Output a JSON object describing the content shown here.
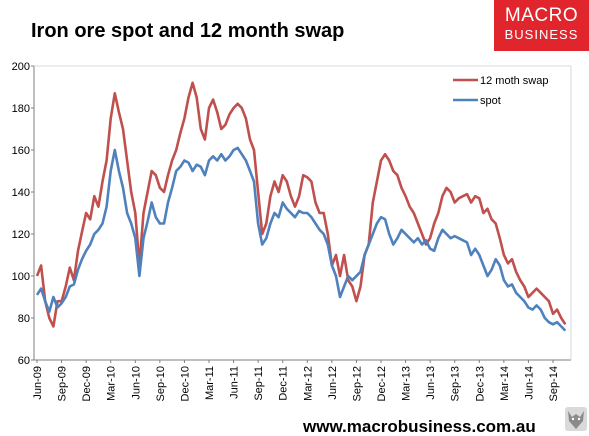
{
  "header": {
    "title": "Iron ore spot and 12 month swap",
    "logo_line1": "MACRO",
    "logo_line2": "BUSINESS"
  },
  "footer": {
    "url": "www.macrobusiness.com.au",
    "logo": "wolf-logo"
  },
  "colors": {
    "swap": "#c0504d",
    "spot": "#4f81bd",
    "logo_bg": "#e0262c"
  },
  "chart_data": {
    "type": "line",
    "title": "Iron ore spot and 12 month swap",
    "xlabel": "",
    "ylabel": "",
    "ylim": [
      60,
      200
    ],
    "yticks": [
      "60",
      "80",
      "100",
      "120",
      "140",
      "160",
      "180",
      "200"
    ],
    "xticks": [
      "Jun-09",
      "Sep-09",
      "Dec-09",
      "Mar-10",
      "Jun-10",
      "Sep-10",
      "Dec-10",
      "Mar-11",
      "Jun-11",
      "Sep-11",
      "Dec-11",
      "Mar-12",
      "Jun-12",
      "Sep-12",
      "Dec-12",
      "Mar-13",
      "Jun-13",
      "Sep-13",
      "Dec-13",
      "Mar-14",
      "Jun-14",
      "Sep-14"
    ],
    "grid": false,
    "legend": "top-right",
    "series": [
      {
        "name": "12 moth swap",
        "color": "#c0504d",
        "points": [
          [
            "Jun-09",
            100
          ],
          [
            "Jun-09",
            105
          ],
          [
            "Jul-09",
            88
          ],
          [
            "Jul-09",
            80
          ],
          [
            "Aug-09",
            76
          ],
          [
            "Aug-09",
            88
          ],
          [
            "Sep-09",
            88
          ],
          [
            "Sep-09",
            95
          ],
          [
            "Oct-09",
            104
          ],
          [
            "Oct-09",
            98
          ],
          [
            "Nov-09",
            112
          ],
          [
            "Nov-09",
            121
          ],
          [
            "Dec-09",
            130
          ],
          [
            "Dec-09",
            127
          ],
          [
            "Jan-10",
            138
          ],
          [
            "Jan-10",
            133
          ],
          [
            "Feb-10",
            145
          ],
          [
            "Feb-10",
            155
          ],
          [
            "Mar-10",
            175
          ],
          [
            "Mar-10",
            187
          ],
          [
            "Apr-10",
            178
          ],
          [
            "Apr-10",
            170
          ],
          [
            "May-10",
            155
          ],
          [
            "May-10",
            140
          ],
          [
            "Jun-10",
            130
          ],
          [
            "Jun-10",
            105
          ],
          [
            "Jul-10",
            130
          ],
          [
            "Jul-10",
            140
          ],
          [
            "Aug-10",
            150
          ],
          [
            "Aug-10",
            148
          ],
          [
            "Sep-10",
            142
          ],
          [
            "Sep-10",
            140
          ],
          [
            "Oct-10",
            148
          ],
          [
            "Oct-10",
            155
          ],
          [
            "Nov-10",
            160
          ],
          [
            "Nov-10",
            168
          ],
          [
            "Dec-10",
            175
          ],
          [
            "Dec-10",
            185
          ],
          [
            "Jan-11",
            192
          ],
          [
            "Jan-11",
            185
          ],
          [
            "Feb-11",
            170
          ],
          [
            "Feb-11",
            165
          ],
          [
            "Mar-11",
            180
          ],
          [
            "Mar-11",
            184
          ],
          [
            "Apr-11",
            178
          ],
          [
            "Apr-11",
            170
          ],
          [
            "May-11",
            172
          ],
          [
            "May-11",
            177
          ],
          [
            "Jun-11",
            180
          ],
          [
            "Jun-11",
            182
          ],
          [
            "Jul-11",
            180
          ],
          [
            "Jul-11",
            175
          ],
          [
            "Aug-11",
            165
          ],
          [
            "Aug-11",
            160
          ],
          [
            "Sep-11",
            140
          ],
          [
            "Sep-11",
            120
          ],
          [
            "Oct-11",
            125
          ],
          [
            "Oct-11",
            138
          ],
          [
            "Nov-11",
            145
          ],
          [
            "Nov-11",
            140
          ],
          [
            "Dec-11",
            148
          ],
          [
            "Dec-11",
            145
          ],
          [
            "Jan-12",
            138
          ],
          [
            "Jan-12",
            133
          ],
          [
            "Feb-12",
            138
          ],
          [
            "Feb-12",
            148
          ],
          [
            "Mar-12",
            147
          ],
          [
            "Mar-12",
            145
          ],
          [
            "Apr-12",
            135
          ],
          [
            "Apr-12",
            130
          ],
          [
            "May-12",
            130
          ],
          [
            "May-12",
            120
          ],
          [
            "Jun-12",
            105
          ],
          [
            "Jun-12",
            110
          ],
          [
            "Jul-12",
            100
          ],
          [
            "Jul-12",
            110
          ],
          [
            "Aug-12",
            98
          ],
          [
            "Aug-12",
            95
          ],
          [
            "Sep-12",
            88
          ],
          [
            "Sep-12",
            95
          ],
          [
            "Oct-12",
            110
          ],
          [
            "Oct-12",
            115
          ],
          [
            "Nov-12",
            135
          ],
          [
            "Nov-12",
            145
          ],
          [
            "Dec-12",
            155
          ],
          [
            "Dec-12",
            158
          ],
          [
            "Jan-13",
            155
          ],
          [
            "Jan-13",
            150
          ],
          [
            "Feb-13",
            148
          ],
          [
            "Feb-13",
            142
          ],
          [
            "Mar-13",
            138
          ],
          [
            "Mar-13",
            133
          ],
          [
            "Apr-13",
            130
          ],
          [
            "Apr-13",
            125
          ],
          [
            "May-13",
            120
          ],
          [
            "May-13",
            115
          ],
          [
            "Jun-13",
            118
          ],
          [
            "Jun-13",
            125
          ],
          [
            "Jul-13",
            130
          ],
          [
            "Jul-13",
            138
          ],
          [
            "Aug-13",
            142
          ],
          [
            "Aug-13",
            140
          ],
          [
            "Sep-13",
            135
          ],
          [
            "Sep-13",
            137
          ],
          [
            "Oct-13",
            138
          ],
          [
            "Oct-13",
            139
          ],
          [
            "Nov-13",
            135
          ],
          [
            "Nov-13",
            138
          ],
          [
            "Dec-13",
            137
          ],
          [
            "Dec-13",
            130
          ],
          [
            "Jan-14",
            132
          ],
          [
            "Jan-14",
            127
          ],
          [
            "Feb-14",
            125
          ],
          [
            "Feb-14",
            118
          ],
          [
            "Mar-14",
            110
          ],
          [
            "Mar-14",
            106
          ],
          [
            "Apr-14",
            108
          ],
          [
            "Apr-14",
            102
          ],
          [
            "May-14",
            98
          ],
          [
            "May-14",
            95
          ],
          [
            "Jun-14",
            90
          ],
          [
            "Jun-14",
            92
          ],
          [
            "Jul-14",
            94
          ],
          [
            "Jul-14",
            92
          ],
          [
            "Aug-14",
            90
          ],
          [
            "Aug-14",
            88
          ],
          [
            "Sep-14",
            82
          ],
          [
            "Sep-14",
            84
          ],
          [
            "Oct-14",
            80
          ],
          [
            "Oct-14",
            77
          ]
        ]
      },
      {
        "name": "spot",
        "color": "#4f81bd",
        "points": [
          [
            "Jun-09",
            91
          ],
          [
            "Jun-09",
            94
          ],
          [
            "Jul-09",
            88
          ],
          [
            "Jul-09",
            83
          ],
          [
            "Aug-09",
            90
          ],
          [
            "Aug-09",
            85
          ],
          [
            "Sep-09",
            87
          ],
          [
            "Sep-09",
            90
          ],
          [
            "Oct-09",
            95
          ],
          [
            "Oct-09",
            96
          ],
          [
            "Nov-09",
            103
          ],
          [
            "Nov-09",
            108
          ],
          [
            "Dec-09",
            112
          ],
          [
            "Dec-09",
            115
          ],
          [
            "Jan-10",
            120
          ],
          [
            "Jan-10",
            122
          ],
          [
            "Feb-10",
            125
          ],
          [
            "Feb-10",
            133
          ],
          [
            "Mar-10",
            150
          ],
          [
            "Mar-10",
            160
          ],
          [
            "Apr-10",
            150
          ],
          [
            "Apr-10",
            142
          ],
          [
            "May-10",
            130
          ],
          [
            "May-10",
            125
          ],
          [
            "Jun-10",
            118
          ],
          [
            "Jun-10",
            100
          ],
          [
            "Jul-10",
            118
          ],
          [
            "Jul-10",
            126
          ],
          [
            "Aug-10",
            135
          ],
          [
            "Aug-10",
            128
          ],
          [
            "Sep-10",
            125
          ],
          [
            "Sep-10",
            125
          ],
          [
            "Oct-10",
            135
          ],
          [
            "Oct-10",
            142
          ],
          [
            "Nov-10",
            150
          ],
          [
            "Nov-10",
            152
          ],
          [
            "Dec-10",
            155
          ],
          [
            "Dec-10",
            154
          ],
          [
            "Jan-11",
            150
          ],
          [
            "Jan-11",
            153
          ],
          [
            "Feb-11",
            152
          ],
          [
            "Feb-11",
            148
          ],
          [
            "Mar-11",
            155
          ],
          [
            "Mar-11",
            157
          ],
          [
            "Apr-11",
            155
          ],
          [
            "Apr-11",
            158
          ],
          [
            "May-11",
            155
          ],
          [
            "May-11",
            157
          ],
          [
            "Jun-11",
            160
          ],
          [
            "Jun-11",
            161
          ],
          [
            "Jul-11",
            158
          ],
          [
            "Jul-11",
            155
          ],
          [
            "Aug-11",
            150
          ],
          [
            "Aug-11",
            145
          ],
          [
            "Sep-11",
            125
          ],
          [
            "Sep-11",
            115
          ],
          [
            "Oct-11",
            118
          ],
          [
            "Oct-11",
            125
          ],
          [
            "Nov-11",
            130
          ],
          [
            "Nov-11",
            128
          ],
          [
            "Dec-11",
            135
          ],
          [
            "Dec-11",
            132
          ],
          [
            "Jan-12",
            130
          ],
          [
            "Jan-12",
            128
          ],
          [
            "Feb-12",
            131
          ],
          [
            "Feb-12",
            130
          ],
          [
            "Mar-12",
            130
          ],
          [
            "Mar-12",
            128
          ],
          [
            "Apr-12",
            125
          ],
          [
            "Apr-12",
            122
          ],
          [
            "May-12",
            120
          ],
          [
            "May-12",
            115
          ],
          [
            "Jun-12",
            105
          ],
          [
            "Jun-12",
            100
          ],
          [
            "Jul-12",
            90
          ],
          [
            "Jul-12",
            95
          ],
          [
            "Aug-12",
            100
          ],
          [
            "Aug-12",
            98
          ],
          [
            "Sep-12",
            100
          ],
          [
            "Sep-12",
            102
          ],
          [
            "Oct-12",
            110
          ],
          [
            "Oct-12",
            115
          ],
          [
            "Nov-12",
            120
          ],
          [
            "Nov-12",
            125
          ],
          [
            "Dec-12",
            128
          ],
          [
            "Dec-12",
            127
          ],
          [
            "Jan-13",
            120
          ],
          [
            "Jan-13",
            115
          ],
          [
            "Feb-13",
            118
          ],
          [
            "Feb-13",
            122
          ],
          [
            "Mar-13",
            120
          ],
          [
            "Mar-13",
            118
          ],
          [
            "Apr-13",
            116
          ],
          [
            "Apr-13",
            118
          ],
          [
            "May-13",
            115
          ],
          [
            "May-13",
            117
          ],
          [
            "Jun-13",
            113
          ],
          [
            "Jun-13",
            112
          ],
          [
            "Jul-13",
            118
          ],
          [
            "Jul-13",
            122
          ],
          [
            "Aug-13",
            120
          ],
          [
            "Aug-13",
            118
          ],
          [
            "Sep-13",
            119
          ],
          [
            "Sep-13",
            118
          ],
          [
            "Oct-13",
            117
          ],
          [
            "Oct-13",
            116
          ],
          [
            "Nov-13",
            110
          ],
          [
            "Nov-13",
            113
          ],
          [
            "Dec-13",
            110
          ],
          [
            "Dec-13",
            105
          ],
          [
            "Jan-14",
            100
          ],
          [
            "Jan-14",
            103
          ],
          [
            "Feb-14",
            108
          ],
          [
            "Feb-14",
            105
          ],
          [
            "Mar-14",
            98
          ],
          [
            "Mar-14",
            95
          ],
          [
            "Apr-14",
            96
          ],
          [
            "Apr-14",
            92
          ],
          [
            "May-14",
            90
          ],
          [
            "May-14",
            88
          ],
          [
            "Jun-14",
            85
          ],
          [
            "Jun-14",
            84
          ],
          [
            "Jul-14",
            86
          ],
          [
            "Jul-14",
            84
          ],
          [
            "Aug-14",
            80
          ],
          [
            "Aug-14",
            78
          ],
          [
            "Sep-14",
            77
          ],
          [
            "Sep-14",
            78
          ],
          [
            "Oct-14",
            76
          ],
          [
            "Oct-14",
            74
          ]
        ]
      }
    ]
  }
}
